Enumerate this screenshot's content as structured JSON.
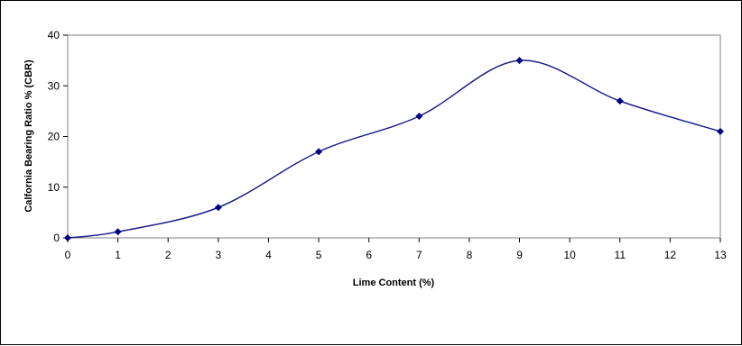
{
  "chart_data": {
    "type": "line",
    "title": "",
    "xlabel": "Lime Content (%)",
    "ylabel": "Calfornia Bearing Ratio % (CBR)",
    "xlim": [
      0,
      13
    ],
    "ylim": [
      0,
      40
    ],
    "x_ticks": [
      0,
      1,
      2,
      3,
      4,
      5,
      6,
      7,
      8,
      9,
      10,
      11,
      12,
      13
    ],
    "y_ticks": [
      0,
      10,
      20,
      30,
      40
    ],
    "grid": false,
    "legend": "none",
    "smooth": true,
    "series": [
      {
        "x": [
          0,
          1,
          3,
          5,
          7,
          9,
          11,
          13
        ],
        "y": [
          0,
          1.2,
          6,
          17,
          24,
          35,
          27,
          21
        ],
        "color": "#1f1f8f",
        "marker": "diamond",
        "marker_color": "#000080"
      }
    ]
  }
}
